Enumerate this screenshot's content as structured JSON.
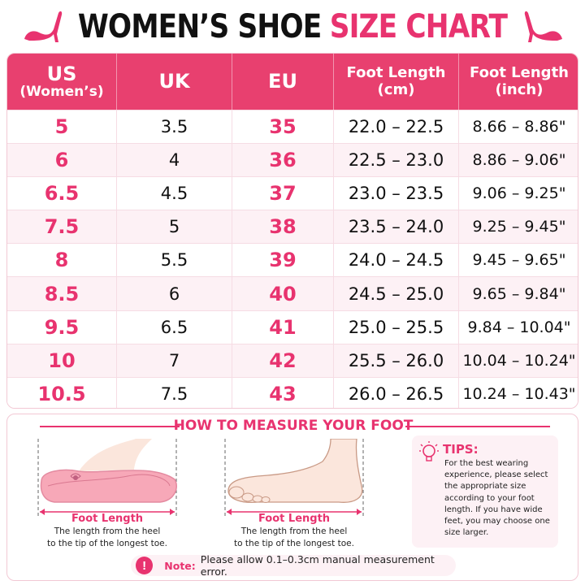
{
  "title": {
    "part1": "WOMEN’S SHOE",
    "part2": "SIZE CHART"
  },
  "colors": {
    "accent": "#e8336f",
    "header_bg": "#e8406f",
    "row_alt": "#fdf1f5"
  },
  "icons": {
    "left": "high-heel-icon",
    "right": "high-heel-icon"
  },
  "table": {
    "headers": [
      {
        "line1": "US",
        "line2": "(Women’s)"
      },
      {
        "line1": "UK",
        "line2": ""
      },
      {
        "line1": "EU",
        "line2": ""
      },
      {
        "line1": "Foot Length",
        "line2": "(cm)"
      },
      {
        "line1": "Foot Length",
        "line2": "(inch)"
      }
    ],
    "rows": [
      {
        "us": "5",
        "uk": "3.5",
        "eu": "35",
        "cm": "22.0 – 22.5",
        "inch": "8.66 – 8.86\""
      },
      {
        "us": "6",
        "uk": "4",
        "eu": "36",
        "cm": "22.5 – 23.0",
        "inch": "8.86 – 9.06\""
      },
      {
        "us": "6.5",
        "uk": "4.5",
        "eu": "37",
        "cm": "23.0 – 23.5",
        "inch": "9.06 – 9.25\""
      },
      {
        "us": "7.5",
        "uk": "5",
        "eu": "38",
        "cm": "23.5 – 24.0",
        "inch": "9.25 – 9.45\""
      },
      {
        "us": "8",
        "uk": "5.5",
        "eu": "39",
        "cm": "24.0 – 24.5",
        "inch": "9.45 – 9.65\""
      },
      {
        "us": "8.5",
        "uk": "6",
        "eu": "40",
        "cm": "24.5 – 25.0",
        "inch": "9.65 – 9.84\""
      },
      {
        "us": "9.5",
        "uk": "6.5",
        "eu": "41",
        "cm": "25.0 – 25.5",
        "inch": "9.84 – 10.04\""
      },
      {
        "us": "10",
        "uk": "7",
        "eu": "42",
        "cm": "25.5 – 26.0",
        "inch": "10.04 – 10.24\""
      },
      {
        "us": "10.5",
        "uk": "7.5",
        "eu": "43",
        "cm": "26.0 – 26.5",
        "inch": "10.24 – 10.43\""
      }
    ]
  },
  "measure": {
    "title": "HOW TO MEASURE YOUR FOOT",
    "shoe": {
      "label": "Foot Length",
      "desc1": "The length from the heel",
      "desc2": "to the tip of the longest toe."
    },
    "foot": {
      "label": "Foot Length",
      "desc1": "The length from the heel",
      "desc2": "to the tip of the longest toe."
    },
    "tips": {
      "title": "TIPS:",
      "text": "For the best wearing experience, please select the appropriate size according to your foot length. If you have wide feet, you may choose one size larger."
    },
    "note": {
      "icon": "!",
      "label": "Note:",
      "text": "Please allow 0.1–0.3cm manual measurement error."
    }
  }
}
